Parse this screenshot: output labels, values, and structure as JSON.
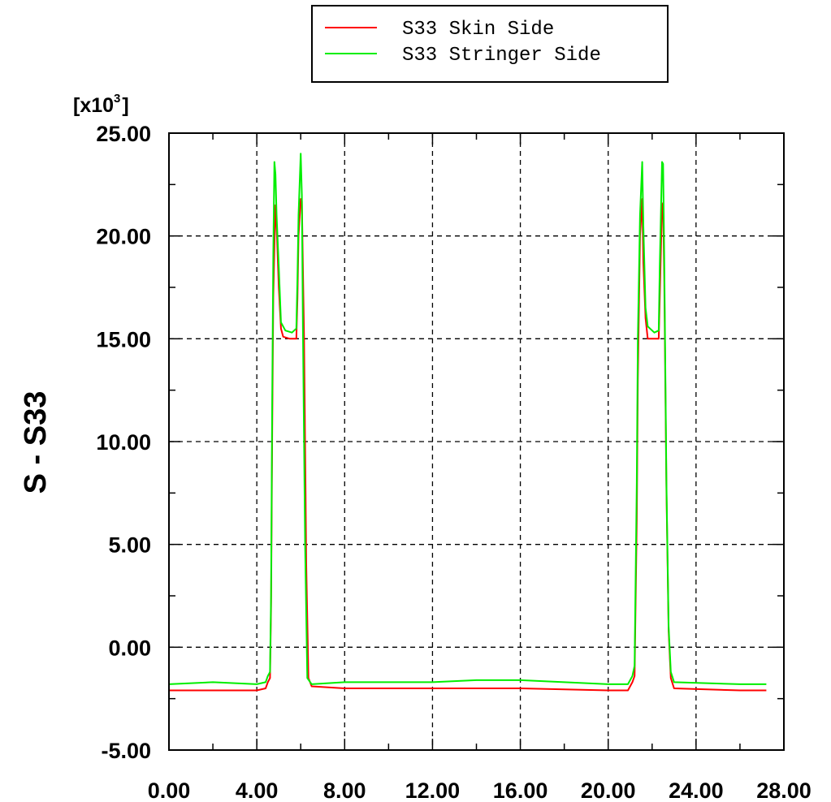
{
  "chart_data": {
    "type": "line",
    "title": "",
    "xlabel": "",
    "ylabel": "S - S33",
    "y_multiplier_label": "[x10",
    "y_multiplier_exp": "3",
    "y_multiplier_close": "]",
    "xlim": [
      0,
      28
    ],
    "ylim": [
      -5,
      25
    ],
    "x_ticks": [
      0,
      4,
      8,
      12,
      16,
      20,
      24,
      28
    ],
    "x_tick_labels": [
      "0.00",
      "4.00",
      "8.00",
      "12.00",
      "16.00",
      "20.00",
      "24.00",
      "28.00"
    ],
    "y_ticks": [
      -5,
      0,
      5,
      10,
      15,
      20,
      25
    ],
    "y_tick_labels": [
      "-5.00",
      "0.00",
      "5.00",
      "10.00",
      "15.00",
      "20.00",
      "25.00"
    ],
    "grid": true,
    "legend_position": "top",
    "series": [
      {
        "name": "S33 Skin Side",
        "color": "#ff0000",
        "points": [
          [
            0,
            -2.1
          ],
          [
            2,
            -2.1
          ],
          [
            4,
            -2.1
          ],
          [
            4.4,
            -2.0
          ],
          [
            4.5,
            -1.7
          ],
          [
            4.6,
            -1.5
          ],
          [
            4.65,
            2.0
          ],
          [
            4.7,
            10.5
          ],
          [
            4.75,
            17.0
          ],
          [
            4.8,
            19.5
          ],
          [
            4.85,
            21.5
          ],
          [
            4.9,
            20.5
          ],
          [
            5.0,
            17.5
          ],
          [
            5.1,
            15.5
          ],
          [
            5.2,
            15.1
          ],
          [
            5.5,
            15.0
          ],
          [
            5.8,
            15.0
          ],
          [
            5.85,
            17.0
          ],
          [
            5.9,
            20.0
          ],
          [
            6.0,
            21.8
          ],
          [
            6.05,
            21.7
          ],
          [
            6.15,
            15.0
          ],
          [
            6.25,
            4.0
          ],
          [
            6.35,
            -1.5
          ],
          [
            6.5,
            -1.9
          ],
          [
            8,
            -2.0
          ],
          [
            12,
            -2.0
          ],
          [
            16,
            -2.0
          ],
          [
            20,
            -2.1
          ],
          [
            20.9,
            -2.1
          ],
          [
            21.1,
            -1.7
          ],
          [
            21.2,
            -1.4
          ],
          [
            21.3,
            6.2
          ],
          [
            21.35,
            13.0
          ],
          [
            21.45,
            20.0
          ],
          [
            21.55,
            21.8
          ],
          [
            21.6,
            18.7
          ],
          [
            21.7,
            16.0
          ],
          [
            21.8,
            15.0
          ],
          [
            22.1,
            15.0
          ],
          [
            22.3,
            15.0
          ],
          [
            22.35,
            17.0
          ],
          [
            22.45,
            21.5
          ],
          [
            22.5,
            21.6
          ],
          [
            22.55,
            18.0
          ],
          [
            22.65,
            7.7
          ],
          [
            22.75,
            0.8
          ],
          [
            22.85,
            -1.5
          ],
          [
            23.0,
            -2.0
          ],
          [
            26,
            -2.1
          ],
          [
            27.2,
            -2.1
          ]
        ]
      },
      {
        "name": "S33 Stringer Side",
        "color": "#00ee00",
        "points": [
          [
            0,
            -1.8
          ],
          [
            2,
            -1.7
          ],
          [
            4,
            -1.8
          ],
          [
            4.4,
            -1.7
          ],
          [
            4.5,
            -1.4
          ],
          [
            4.6,
            -1.2
          ],
          [
            4.65,
            2.5
          ],
          [
            4.7,
            12.0
          ],
          [
            4.75,
            19.0
          ],
          [
            4.8,
            23.6
          ],
          [
            4.85,
            23.0
          ],
          [
            4.9,
            21.0
          ],
          [
            5.0,
            18.5
          ],
          [
            5.1,
            15.8
          ],
          [
            5.3,
            15.4
          ],
          [
            5.6,
            15.3
          ],
          [
            5.8,
            15.5
          ],
          [
            5.85,
            18.0
          ],
          [
            5.9,
            21.0
          ],
          [
            6.0,
            24.0
          ],
          [
            6.05,
            22.0
          ],
          [
            6.1,
            15.5
          ],
          [
            6.2,
            5.0
          ],
          [
            6.3,
            -1.5
          ],
          [
            6.5,
            -1.8
          ],
          [
            8,
            -1.7
          ],
          [
            12,
            -1.7
          ],
          [
            14,
            -1.6
          ],
          [
            16,
            -1.6
          ],
          [
            18,
            -1.7
          ],
          [
            20,
            -1.8
          ],
          [
            20.9,
            -1.8
          ],
          [
            21.1,
            -1.4
          ],
          [
            21.2,
            -0.9
          ],
          [
            21.3,
            8.0
          ],
          [
            21.35,
            15.0
          ],
          [
            21.45,
            21.0
          ],
          [
            21.55,
            23.6
          ],
          [
            21.6,
            20.5
          ],
          [
            21.7,
            16.5
          ],
          [
            21.8,
            15.6
          ],
          [
            22.1,
            15.3
          ],
          [
            22.3,
            15.4
          ],
          [
            22.35,
            18.5
          ],
          [
            22.45,
            23.6
          ],
          [
            22.5,
            23.5
          ],
          [
            22.55,
            19.0
          ],
          [
            22.65,
            8.0
          ],
          [
            22.75,
            1.0
          ],
          [
            22.85,
            -1.2
          ],
          [
            23.0,
            -1.7
          ],
          [
            26,
            -1.8
          ],
          [
            27.2,
            -1.8
          ]
        ]
      }
    ]
  }
}
